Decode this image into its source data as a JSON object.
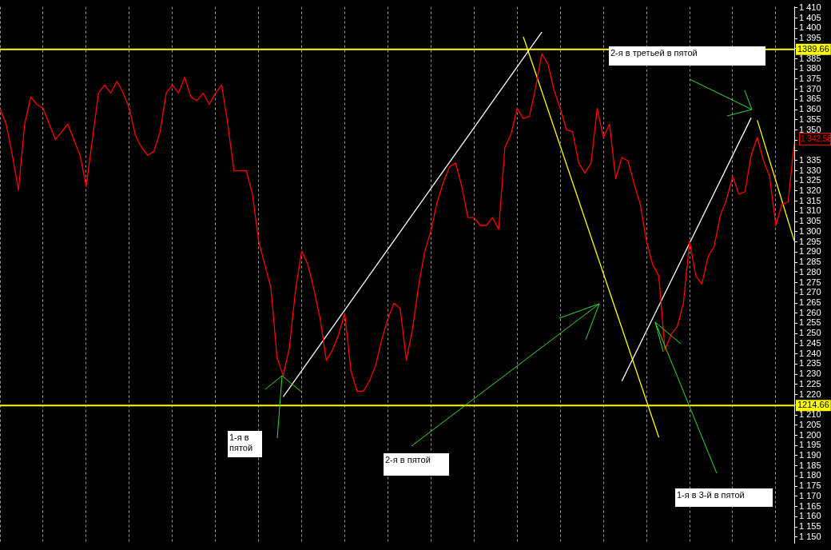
{
  "chart_data": {
    "type": "line",
    "tick_labels": "y",
    "grid": "x",
    "categories": [
      null,
      null,
      null,
      null,
      null,
      null,
      null,
      null,
      null,
      null,
      null,
      null,
      null,
      null,
      null,
      null,
      null,
      null,
      null,
      null,
      null,
      null,
      null,
      null,
      null,
      null,
      null,
      null,
      null,
      null,
      null,
      null,
      null,
      null,
      null,
      null,
      null,
      null,
      null,
      null,
      null,
      null,
      null,
      null,
      null,
      null,
      null,
      null,
      null,
      null,
      null,
      null,
      null,
      null,
      null,
      null,
      null,
      null,
      null,
      null,
      null,
      null,
      null,
      null,
      null,
      null,
      null,
      null,
      null,
      null,
      null,
      null,
      null,
      null,
      null,
      null,
      null,
      null,
      null,
      null,
      null,
      null,
      null,
      null,
      null,
      null,
      null,
      null,
      null,
      null,
      null,
      null,
      null,
      null,
      null,
      null,
      null,
      null,
      null,
      null,
      null,
      null,
      null,
      null,
      null,
      null,
      null,
      null,
      null,
      null,
      null,
      null,
      null,
      null,
      null,
      null,
      null,
      null,
      null,
      null,
      null,
      null,
      null,
      null,
      null,
      null,
      null,
      null,
      null,
      null
    ],
    "ylim": [
      1147,
      1410.5
    ],
    "yticks": [
      {
        "value": 1150,
        "label": "1 150"
      },
      {
        "value": 1155,
        "label": "1 155"
      },
      {
        "value": 1160,
        "label": "1 160"
      },
      {
        "value": 1165,
        "label": "1 165"
      },
      {
        "value": 1170,
        "label": "1 170"
      },
      {
        "value": 1175,
        "label": "1 175"
      },
      {
        "value": 1180,
        "label": "1 180"
      },
      {
        "value": 1185,
        "label": "1 185"
      },
      {
        "value": 1190,
        "label": "1 190"
      },
      {
        "value": 1195,
        "label": "1 195"
      },
      {
        "value": 1200,
        "label": "1 200"
      },
      {
        "value": 1205,
        "label": "1 205"
      },
      {
        "value": 1210,
        "label": "1 210"
      },
      {
        "value": 1215,
        "label": null
      },
      {
        "value": 1220,
        "label": "1 220"
      },
      {
        "value": 1225,
        "label": "1 225"
      },
      {
        "value": 1230,
        "label": "1 230"
      },
      {
        "value": 1235,
        "label": "1 235"
      },
      {
        "value": 1240,
        "label": "1 240"
      },
      {
        "value": 1245,
        "label": "1 245"
      },
      {
        "value": 1250,
        "label": "1 250"
      },
      {
        "value": 1255,
        "label": "1 255"
      },
      {
        "value": 1260,
        "label": "1 260"
      },
      {
        "value": 1265,
        "label": "1 265"
      },
      {
        "value": 1270,
        "label": "1 270"
      },
      {
        "value": 1275,
        "label": "1 275"
      },
      {
        "value": 1280,
        "label": "1 280"
      },
      {
        "value": 1285,
        "label": "1 285"
      },
      {
        "value": 1290,
        "label": "1 290"
      },
      {
        "value": 1295,
        "label": "1 295"
      },
      {
        "value": 1300,
        "label": "1 300"
      },
      {
        "value": 1305,
        "label": "1 305"
      },
      {
        "value": 1310,
        "label": "1 310"
      },
      {
        "value": 1315,
        "label": "1 315"
      },
      {
        "value": 1320,
        "label": "1 320"
      },
      {
        "value": 1325,
        "label": "1 325"
      },
      {
        "value": 1330,
        "label": "1 330"
      },
      {
        "value": 1335,
        "label": "1 335"
      },
      {
        "value": 1340,
        "label": null
      },
      {
        "value": 1345,
        "label": null
      },
      {
        "value": 1350,
        "label": "1 350"
      },
      {
        "value": 1355,
        "label": "1 355"
      },
      {
        "value": 1360,
        "label": "1 360"
      },
      {
        "value": 1365,
        "label": "1 365"
      },
      {
        "value": 1370,
        "label": "1 370"
      },
      {
        "value": 1375,
        "label": "1 375"
      },
      {
        "value": 1380,
        "label": "1 380"
      },
      {
        "value": 1385,
        "label": "1 385"
      },
      {
        "value": 1390,
        "label": null
      },
      {
        "value": 1395,
        "label": "1 395"
      },
      {
        "value": 1400,
        "label": "1 400"
      },
      {
        "value": 1405,
        "label": "1 405"
      },
      {
        "value": 1410,
        "label": "1 410"
      }
    ],
    "series": [
      {
        "color": "#ff0000",
        "values": [
          1360.6,
          1352.9,
          1337.6,
          1320.4,
          1352.9,
          1366.3,
          1362.5,
          1360.6,
          1352.9,
          1345.3,
          1349.1,
          1352.9,
          1345.3,
          1337.6,
          1322.3,
          1345.3,
          1368.2,
          1372.1,
          1368.2,
          1374,
          1368.2,
          1360.6,
          1347.2,
          1341.4,
          1337.6,
          1339.5,
          1349.1,
          1368.2,
          1372.1,
          1368.2,
          1375.9,
          1366.3,
          1364.4,
          1368.2,
          1362.5,
          1368.2,
          1372.1,
          1352.9,
          1330,
          1330,
          1330,
          1318.5,
          1295.5,
          1284,
          1272.5,
          1238.1,
          1229.2,
          1243,
          1271.4,
          1290.5,
          1284,
          1271.4,
          1257.2,
          1236.9,
          1241.9,
          1249.5,
          1259.9,
          1231.5,
          1221.6,
          1221.6,
          1226.6,
          1234.2,
          1246.9,
          1257.2,
          1264.9,
          1262.2,
          1236.9,
          1252.2,
          1273.7,
          1290.5,
          1300.5,
          1314.6,
          1324.2,
          1331.9,
          1333.8,
          1322.3,
          1307,
          1307,
          1303.1,
          1303.1,
          1307,
          1301.2,
          1341.4,
          1347.9,
          1360.6,
          1355.6,
          1356.8,
          1370.9,
          1387.4,
          1382.4,
          1369.4,
          1360.6,
          1350.2,
          1349.1,
          1333.8,
          1328.8,
          1333.8,
          1360.6,
          1346.4,
          1352.9,
          1326.1,
          1336.5,
          1334.9,
          1323.4,
          1313.5,
          1295.5,
          1284,
          1278.3,
          1241.9,
          1249.5,
          1253.4,
          1264.9,
          1295.5,
          1278.3,
          1274.4,
          1287.8,
          1292.8,
          1308.1,
          1315.8,
          1327.3,
          1318.5,
          1319.6,
          1337.6,
          1346.4,
          1334.9,
          1327.3,
          1303.1,
          1313.5,
          1314.6,
          1343.4
        ]
      },
      {
        "type": "line",
        "color": "#ffffff",
        "values": [
          null,
          null,
          null,
          null,
          null,
          null,
          null,
          null,
          null,
          null,
          null,
          null,
          null,
          null,
          null,
          null,
          null,
          null,
          null,
          null,
          null,
          null,
          null,
          null,
          null,
          null,
          null,
          null,
          null,
          null,
          null,
          null,
          null,
          null,
          null,
          null,
          null,
          null,
          null,
          null,
          null,
          null,
          null,
          null,
          null,
          null,
          1218.9,
          null,
          null,
          null,
          null,
          null,
          null,
          null,
          null,
          null,
          null,
          null,
          null,
          null,
          null,
          null,
          null,
          null,
          null,
          null,
          null,
          null,
          null,
          null,
          null,
          null,
          null,
          null,
          null,
          null,
          null,
          null,
          null,
          null,
          null,
          null,
          null,
          null,
          null,
          null,
          null,
          null,
          1398.1,
          null,
          null,
          null,
          null,
          null,
          null,
          null,
          null,
          null,
          null,
          null,
          null,
          null,
          null,
          null,
          null,
          null,
          null,
          null,
          null,
          null,
          null,
          null,
          null,
          null,
          null,
          null,
          null,
          null,
          null,
          null,
          null,
          null,
          null,
          null,
          null,
          null,
          null,
          null,
          null,
          null
        ]
      },
      {
        "type": "line",
        "color": "#ffffff",
        "values": [
          null,
          null,
          null,
          null,
          null,
          null,
          null,
          null,
          null,
          null,
          null,
          null,
          null,
          null,
          null,
          null,
          null,
          null,
          null,
          null,
          null,
          null,
          null,
          null,
          null,
          null,
          null,
          null,
          null,
          null,
          null,
          null,
          null,
          null,
          null,
          null,
          null,
          null,
          null,
          null,
          null,
          null,
          null,
          null,
          null,
          null,
          null,
          null,
          null,
          null,
          null,
          null,
          null,
          null,
          null,
          null,
          null,
          null,
          null,
          null,
          null,
          null,
          null,
          null,
          null,
          null,
          null,
          null,
          null,
          null,
          null,
          null,
          null,
          null,
          null,
          null,
          null,
          null,
          null,
          null,
          null,
          null,
          null,
          null,
          null,
          null,
          null,
          null,
          null,
          null,
          null,
          null,
          null,
          null,
          null,
          null,
          null,
          null,
          null,
          null,
          null,
          1226.6,
          null,
          null,
          null,
          null,
          null,
          null,
          null,
          null,
          null,
          null,
          null,
          null,
          null,
          null,
          null,
          null,
          null,
          null,
          null,
          null,
          1356,
          null,
          null,
          null,
          null,
          null,
          null,
          null
        ]
      },
      {
        "type": "line",
        "color": "#ffff00",
        "values": [
          null,
          null,
          null,
          null,
          null,
          null,
          null,
          null,
          null,
          null,
          null,
          null,
          null,
          null,
          null,
          null,
          null,
          null,
          null,
          null,
          null,
          null,
          null,
          null,
          null,
          null,
          null,
          null,
          null,
          null,
          null,
          null,
          null,
          null,
          null,
          null,
          null,
          null,
          null,
          null,
          null,
          null,
          null,
          null,
          null,
          null,
          null,
          null,
          null,
          null,
          null,
          null,
          null,
          null,
          null,
          null,
          null,
          null,
          null,
          null,
          null,
          null,
          null,
          null,
          null,
          null,
          null,
          null,
          null,
          null,
          null,
          null,
          null,
          null,
          null,
          null,
          null,
          null,
          null,
          null,
          null,
          null,
          null,
          null,
          null,
          1395.8,
          null,
          null,
          null,
          null,
          null,
          null,
          null,
          null,
          null,
          null,
          null,
          null,
          null,
          null,
          null,
          null,
          null,
          null,
          null,
          null,
          null,
          1199,
          null,
          null,
          null,
          null,
          null,
          null,
          null,
          null,
          null,
          null,
          null,
          null,
          null,
          null,
          null,
          null,
          null,
          null,
          null,
          null,
          null,
          null
        ]
      },
      {
        "type": "line",
        "color": "#ffff00",
        "values": [
          null,
          null,
          null,
          null,
          null,
          null,
          null,
          null,
          null,
          null,
          null,
          null,
          null,
          null,
          null,
          null,
          null,
          null,
          null,
          null,
          null,
          null,
          null,
          null,
          null,
          null,
          null,
          null,
          null,
          null,
          null,
          null,
          null,
          null,
          null,
          null,
          null,
          null,
          null,
          null,
          null,
          null,
          null,
          null,
          null,
          null,
          null,
          null,
          null,
          null,
          null,
          null,
          null,
          null,
          null,
          null,
          null,
          null,
          null,
          null,
          null,
          null,
          null,
          null,
          null,
          null,
          null,
          null,
          null,
          null,
          null,
          null,
          null,
          null,
          null,
          null,
          null,
          null,
          null,
          null,
          null,
          null,
          null,
          null,
          null,
          null,
          null,
          null,
          null,
          null,
          null,
          null,
          null,
          null,
          null,
          null,
          null,
          null,
          null,
          null,
          null,
          null,
          null,
          null,
          null,
          null,
          null,
          null,
          null,
          null,
          null,
          null,
          null,
          null,
          null,
          null,
          null,
          null,
          null,
          null,
          null,
          null,
          null,
          1354.8,
          null,
          null,
          null,
          null,
          null,
          1295.5
        ]
      }
    ],
    "ref_lines": [
      {
        "axis": "y",
        "value": 1389.66,
        "label": "1389.66",
        "color": "#ffff00"
      },
      {
        "axis": "y",
        "value": 1214.66,
        "label": "1214.66",
        "color": "#ffff00"
      }
    ],
    "annotations": [
      "2-я в третьей в пятой",
      "1-я в пятой",
      "2-я в пятой",
      "1-я в 3-й в пятой",
      "1 342.58"
    ]
  }
}
